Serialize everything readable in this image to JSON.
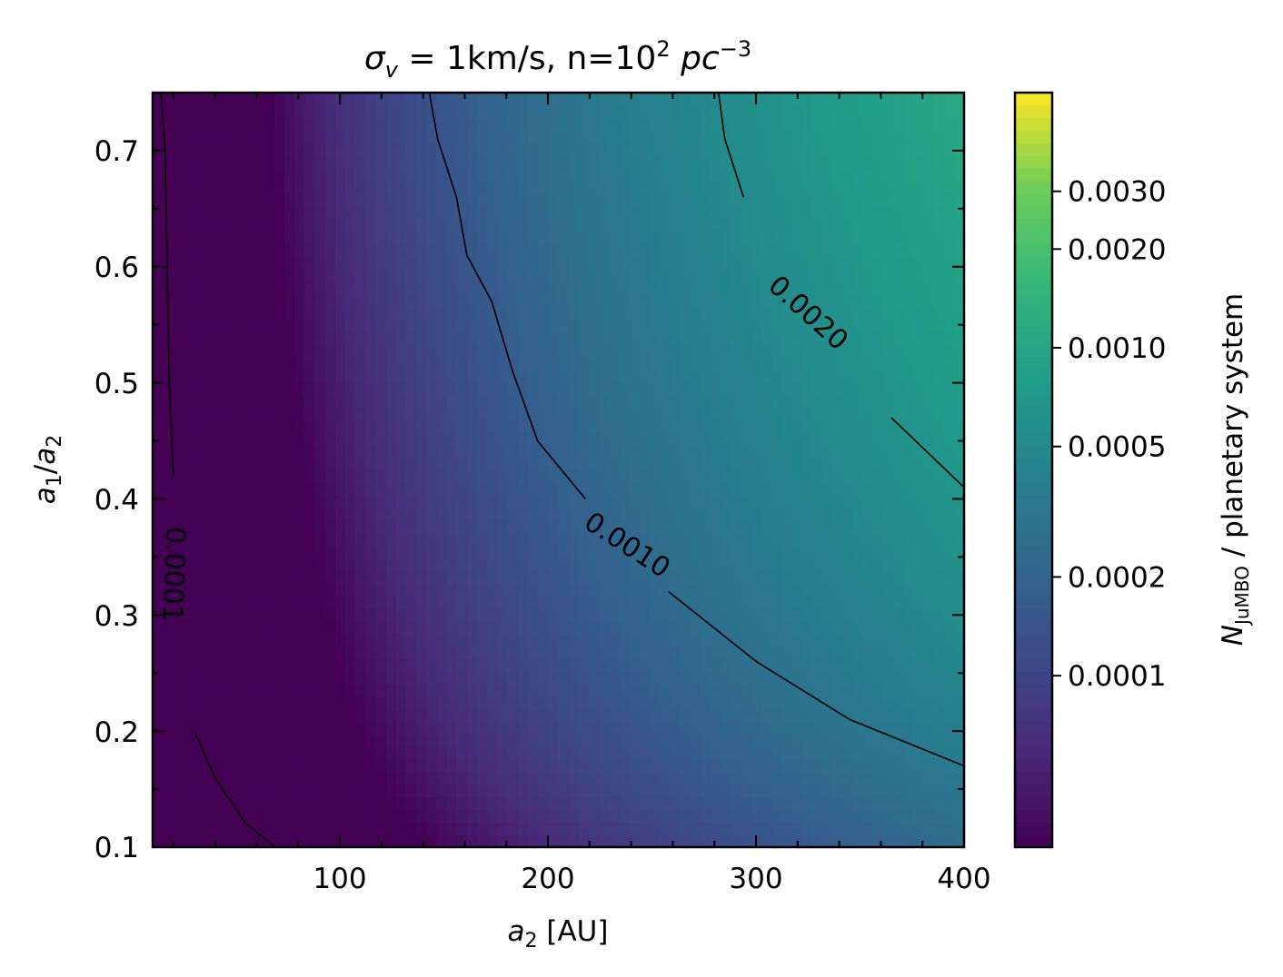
{
  "chart_data": {
    "type": "heatmap",
    "title": {
      "symbol": "σ",
      "symbol_sub": "v",
      "middle": " = 1km/s, n=10",
      "exp": "2",
      "unit": "pc",
      "unit_exp": "−3"
    },
    "xlabel": {
      "var": "a",
      "sub": "2",
      "rest": " [AU]"
    },
    "ylabel": {
      "var1": "a",
      "sub1": "1",
      "slash": "/",
      "var2": "a",
      "sub2": "2"
    },
    "colorbar_label": {
      "var": "N",
      "sub": "JuMBO",
      "rest": " / planetary system"
    },
    "xlim": [
      10,
      400
    ],
    "ylim": [
      0.1,
      0.75
    ],
    "xticks": [
      100,
      200,
      300,
      400
    ],
    "xtick_labels": [
      "100",
      "200",
      "300",
      "400"
    ],
    "yticks": [
      0.1,
      0.2,
      0.3,
      0.4,
      0.5,
      0.6,
      0.7
    ],
    "ytick_labels": [
      "0.1",
      "0.2",
      "0.3",
      "0.4",
      "0.5",
      "0.6",
      "0.7"
    ],
    "colorbar_range": [
      3e-05,
      0.006
    ],
    "colorbar_scale": "log",
    "colorbar_ticks": [
      0.0001,
      0.0002,
      0.0005,
      0.001,
      0.002,
      0.003
    ],
    "colorbar_tick_labels": [
      "0.0001",
      "0.0002",
      "0.0005",
      "0.0010",
      "0.0020",
      "0.0030"
    ],
    "colormap": "viridis",
    "contours": [
      {
        "level": 0.0001,
        "label": "0.0001",
        "points": [
          [
            14,
            0.75
          ],
          [
            16,
            0.7
          ],
          [
            17,
            0.6
          ],
          [
            18,
            0.5
          ],
          [
            20,
            0.42
          ],
          [
            26,
            0.3
          ],
          [
            30,
            0.2
          ],
          [
            40,
            0.16
          ],
          [
            55,
            0.12
          ],
          [
            69,
            0.1
          ]
        ]
      },
      {
        "level": 0.001,
        "label": "0.0010",
        "points": [
          [
            143,
            0.75
          ],
          [
            147,
            0.71
          ],
          [
            156,
            0.66
          ],
          [
            161,
            0.61
          ],
          [
            173,
            0.57
          ],
          [
            183,
            0.51
          ],
          [
            195,
            0.45
          ],
          [
            218,
            0.4
          ],
          [
            258,
            0.32
          ],
          [
            300,
            0.26
          ],
          [
            345,
            0.21
          ],
          [
            400,
            0.17
          ]
        ]
      },
      {
        "level": 0.002,
        "label": "0.0020",
        "points": [
          [
            282,
            0.75
          ],
          [
            285,
            0.71
          ],
          [
            294,
            0.66
          ],
          [
            307,
            0.63
          ],
          [
            320,
            0.56
          ],
          [
            340,
            0.53
          ],
          [
            365,
            0.47
          ],
          [
            400,
            0.41
          ]
        ]
      }
    ],
    "grid": false
  }
}
